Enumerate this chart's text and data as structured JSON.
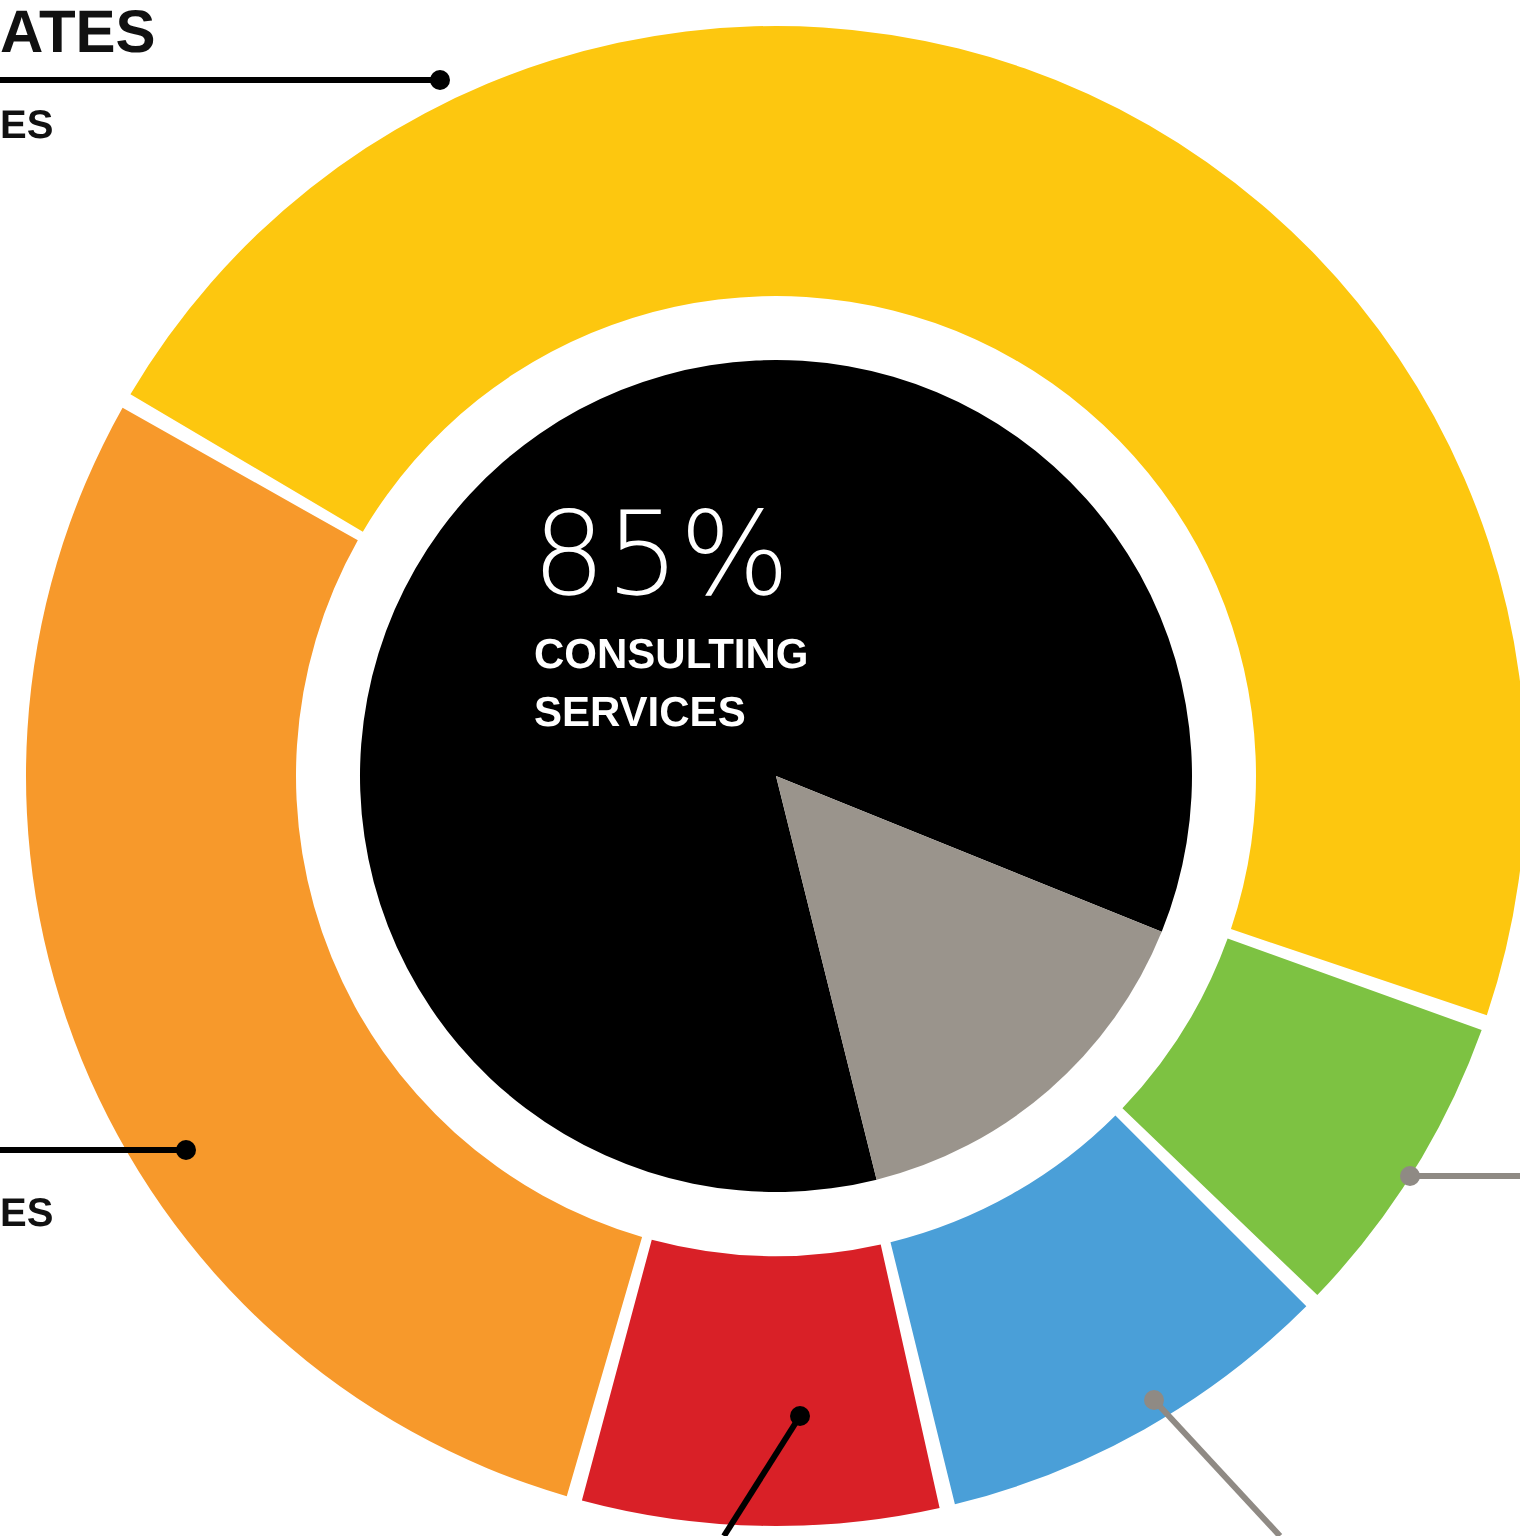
{
  "chart_data": [
    {
      "type": "pie",
      "categories": [
        "CONSULTING SERVICES",
        null
      ],
      "values": [
        85,
        15
      ],
      "colors": [
        "#000000",
        "#9a948c"
      ],
      "value_labels": [
        "85%",
        null
      ],
      "legend": false
    },
    {
      "type": "donut",
      "categories": [
        null,
        null,
        null,
        null,
        null
      ],
      "values": [
        47,
        7,
        9,
        8,
        29
      ],
      "colors": [
        "#fdc70f",
        "#7dc242",
        "#4a9fd8",
        "#d92027",
        "#f7992b"
      ],
      "legend": false,
      "annotations": [
        "ATES",
        "ES",
        "ES"
      ]
    }
  ]
}
